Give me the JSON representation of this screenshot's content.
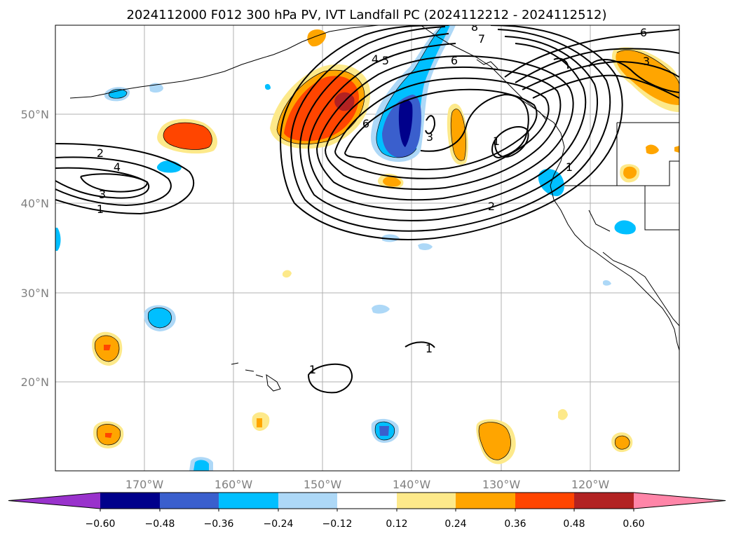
{
  "title": "2024112000 F012 300 hPa PV, IVT Landfall PC (2024112212 - 2024112512)",
  "map": {
    "lon_range": [
      -180,
      -110
    ],
    "lat_range": [
      10,
      60
    ],
    "lon_ticks": [
      "170°W",
      "160°W",
      "150°W",
      "140°W",
      "130°W",
      "120°W"
    ],
    "lat_ticks": [
      "50°N",
      "40°N",
      "30°N",
      "20°N"
    ],
    "grid": true
  },
  "contour_labels": [
    "2",
    "4",
    "3",
    "1",
    "4",
    "5",
    "6",
    "7",
    "8",
    "6",
    "3",
    "1",
    "2",
    "1",
    "1",
    "1",
    "3",
    "6"
  ],
  "colorbar": {
    "ticks": [
      "−0.60",
      "−0.48",
      "−0.36",
      "−0.24",
      "−0.12",
      "0.12",
      "0.24",
      "0.36",
      "0.48",
      "0.60"
    ],
    "colors": [
      "#9932cc",
      "#00008b",
      "#3a5fcd",
      "#00bfff",
      "#add8f7",
      "#ffffff",
      "#fde98a",
      "#ffa500",
      "#ff4500",
      "#b22222",
      "#ff85a8"
    ]
  }
}
